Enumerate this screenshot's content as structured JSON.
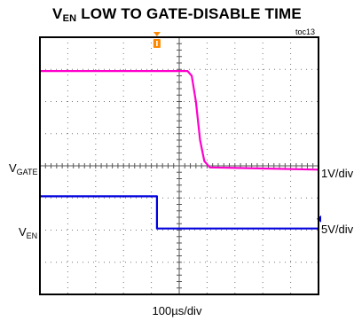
{
  "chart_data": {
    "type": "line",
    "title_main": "V",
    "title_sub": "EN",
    "title_rest": " LOW TO GATE-DISABLE TIME",
    "figure_ref": "toc13",
    "x_scale_label": "100µs/div",
    "grid": {
      "x_divisions": 10,
      "y_divisions": 8,
      "style": "dotted"
    },
    "xlim_div": [
      0,
      10
    ],
    "ylim_div": [
      0,
      8
    ],
    "trigger_x_div": 4.2,
    "series": [
      {
        "name_main": "V",
        "name_sub": "GATE",
        "scale": "1V/div",
        "color": "#ff00cc",
        "points": [
          {
            "t_div": 0.0,
            "level_div": 6.95
          },
          {
            "t_div": 5.3,
            "level_div": 6.95
          },
          {
            "t_div": 5.45,
            "level_div": 6.8
          },
          {
            "t_div": 5.6,
            "level_div": 6.0
          },
          {
            "t_div": 5.75,
            "level_div": 4.8
          },
          {
            "t_div": 5.9,
            "level_div": 4.15
          },
          {
            "t_div": 6.1,
            "level_div": 3.95
          },
          {
            "t_div": 10.0,
            "level_div": 3.88
          }
        ]
      },
      {
        "name_main": "V",
        "name_sub": "EN",
        "scale": "5V/div",
        "color": "#0000dd",
        "points": [
          {
            "t_div": 0.0,
            "level_div": 3.05
          },
          {
            "t_div": 4.2,
            "level_div": 3.05
          },
          {
            "t_div": 4.2,
            "level_div": 2.05
          },
          {
            "t_div": 10.0,
            "level_div": 2.05
          }
        ]
      }
    ]
  }
}
